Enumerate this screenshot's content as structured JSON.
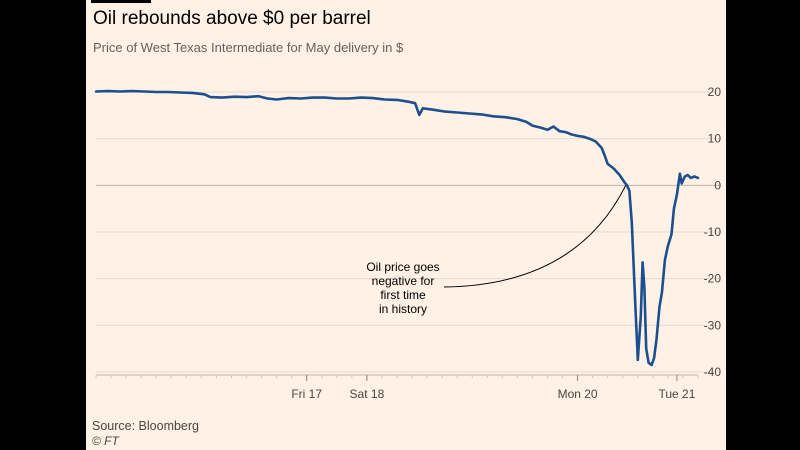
{
  "colors": {
    "panel_bg": "#fff1e5",
    "line": "#1c4f8f",
    "grid": "#e6d9ce",
    "text": "#4a4542"
  },
  "title": "Oil rebounds above $0 per barrel",
  "subtitle": "Price of West Texas Intermediate for May delivery in $",
  "footer": {
    "source": "Source: Bloomberg",
    "credit": "© FT"
  },
  "chart_data": {
    "type": "line",
    "title": "Oil rebounds above $0 per barrel",
    "subtitle": "Price of West Texas Intermediate for May delivery in $",
    "xlabel": "",
    "ylabel": "",
    "y_axis_position": "right",
    "ylim": [
      -40,
      20
    ],
    "yticks": [
      20,
      10,
      0,
      -10,
      -20,
      -30,
      -40
    ],
    "xlim": [
      0,
      100
    ],
    "xticks": [
      {
        "label": "Fri 17",
        "value": 35
      },
      {
        "label": "Sat 18",
        "value": 45
      },
      {
        "label": "Mon 20",
        "value": 80
      },
      {
        "label": "Tue 21",
        "value": 96.5
      }
    ],
    "grid": {
      "horizontal": true,
      "vertical": false
    },
    "annotation": {
      "lines": [
        "Oil price goes",
        "negative for",
        "first time",
        "in history"
      ],
      "point": {
        "x": 88,
        "y": 0
      }
    },
    "series": [
      {
        "values": [
          [
            0,
            20.1
          ],
          [
            2,
            20.2
          ],
          [
            4,
            20.1
          ],
          [
            6,
            20.2
          ],
          [
            8,
            20.1
          ],
          [
            10,
            20.0
          ],
          [
            12,
            20.0
          ],
          [
            14,
            19.9
          ],
          [
            16,
            19.8
          ],
          [
            18,
            19.5
          ],
          [
            19,
            18.9
          ],
          [
            21,
            18.8
          ],
          [
            23,
            19.0
          ],
          [
            25,
            18.9
          ],
          [
            27,
            19.1
          ],
          [
            28.5,
            18.6
          ],
          [
            30,
            18.4
          ],
          [
            32,
            18.7
          ],
          [
            34,
            18.6
          ],
          [
            36,
            18.8
          ],
          [
            38,
            18.8
          ],
          [
            40,
            18.6
          ],
          [
            42,
            18.6
          ],
          [
            44,
            18.8
          ],
          [
            46,
            18.7
          ],
          [
            48,
            18.4
          ],
          [
            50,
            18.3
          ],
          [
            52,
            17.9
          ],
          [
            53,
            17.6
          ],
          [
            53.7,
            15.1
          ],
          [
            54.3,
            16.5
          ],
          [
            56,
            16.2
          ],
          [
            58,
            15.8
          ],
          [
            60,
            15.6
          ],
          [
            62,
            15.4
          ],
          [
            64,
            15.2
          ],
          [
            66,
            14.8
          ],
          [
            68,
            14.6
          ],
          [
            70,
            14.2
          ],
          [
            71.5,
            13.6
          ],
          [
            72.5,
            12.8
          ],
          [
            74,
            12.3
          ],
          [
            75,
            11.9
          ],
          [
            76,
            12.6
          ],
          [
            77,
            11.6
          ],
          [
            78,
            11.4
          ],
          [
            79,
            10.9
          ],
          [
            80,
            10.6
          ],
          [
            81,
            10.4
          ],
          [
            82,
            10.0
          ],
          [
            83,
            9.4
          ],
          [
            84,
            8.0
          ],
          [
            84.5,
            6.4
          ],
          [
            85,
            4.6
          ],
          [
            86,
            3.6
          ],
          [
            87,
            2.2
          ],
          [
            87.8,
            0.6
          ],
          [
            88.2,
            0.0
          ],
          [
            88.6,
            -1.2
          ],
          [
            89,
            -8
          ],
          [
            89.6,
            -26
          ],
          [
            90.0,
            -37.4
          ],
          [
            90.5,
            -28
          ],
          [
            90.8,
            -16.5
          ],
          [
            91.1,
            -22
          ],
          [
            91.4,
            -35
          ],
          [
            91.8,
            -38
          ],
          [
            92.3,
            -38.5
          ],
          [
            92.7,
            -37
          ],
          [
            93.1,
            -33
          ],
          [
            93.6,
            -26
          ],
          [
            94.0,
            -23
          ],
          [
            94.5,
            -16
          ],
          [
            95,
            -13
          ],
          [
            95.6,
            -10.5
          ],
          [
            96.0,
            -5
          ],
          [
            96.5,
            -2
          ],
          [
            97,
            2.5
          ],
          [
            97.3,
            0.4
          ],
          [
            97.8,
            1.9
          ],
          [
            98.3,
            2.2
          ],
          [
            98.8,
            1.6
          ],
          [
            99.4,
            1.9
          ],
          [
            100,
            1.6
          ]
        ]
      }
    ]
  }
}
